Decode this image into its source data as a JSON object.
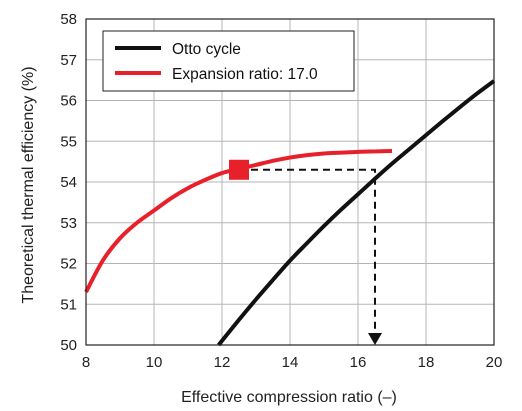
{
  "chart_data": {
    "type": "line",
    "xlabel": "Effective compression ratio (–)",
    "ylabel": "Theoretical thermal efficiency (%)",
    "xlim": [
      8,
      20
    ],
    "ylim": [
      50,
      58
    ],
    "xticks": [
      "8",
      "10",
      "12",
      "14",
      "16",
      "18",
      "20"
    ],
    "yticks": [
      "50",
      "51",
      "52",
      "53",
      "54",
      "55",
      "56",
      "57",
      "58"
    ],
    "grid": true,
    "legend_position": "top-left",
    "series": [
      {
        "name": "Otto cycle",
        "color": "#111111",
        "x": [
          11.9,
          12.5,
          13.0,
          13.5,
          14.0,
          14.5,
          15.0,
          15.5,
          16.0,
          16.5,
          17.0,
          17.5,
          18.0,
          18.5,
          19.0,
          19.5,
          20.0
        ],
        "y": [
          50.0,
          50.62,
          51.12,
          51.6,
          52.07,
          52.5,
          52.92,
          53.32,
          53.7,
          54.08,
          54.45,
          54.8,
          55.15,
          55.5,
          55.84,
          56.17,
          56.48
        ]
      },
      {
        "name": "Expansion ratio: 17.0",
        "color": "#e8202a",
        "x": [
          8.0,
          8.5,
          9.0,
          9.5,
          10.0,
          10.5,
          11.0,
          11.5,
          12.0,
          12.5,
          13.0,
          13.5,
          14.0,
          14.5,
          15.0,
          15.5,
          16.0,
          16.5,
          17.0
        ],
        "y": [
          51.3,
          52.08,
          52.62,
          53.0,
          53.3,
          53.6,
          53.85,
          54.05,
          54.22,
          54.32,
          54.42,
          54.52,
          54.6,
          54.66,
          54.7,
          54.72,
          54.74,
          54.75,
          54.76
        ]
      }
    ],
    "annotations": {
      "marker": {
        "x": 12.5,
        "y": 54.3,
        "color": "#e8202a"
      },
      "dashed_path": [
        [
          12.5,
          54.3
        ],
        [
          16.5,
          54.3
        ],
        [
          16.5,
          50.0
        ]
      ]
    }
  }
}
